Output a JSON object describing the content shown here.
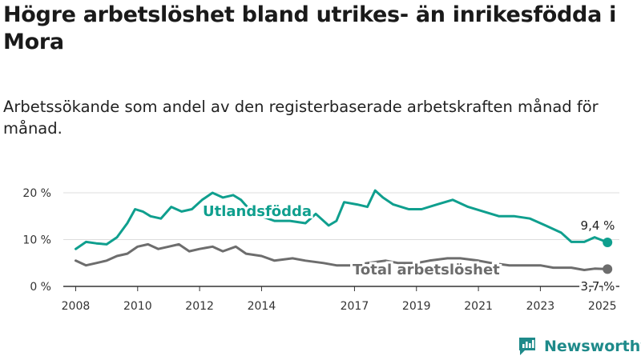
{
  "title": "Högre arbetslöshet bland utrikes- än inrikesfödda i Mora",
  "subtitle": "Arbetssökande som andel av den registerbaserade arbetskraften månad för månad.",
  "brand": {
    "name": "Newsworthy",
    "color": "#1e8a8a"
  },
  "colors": {
    "utlandsfodda": "#0f9f8e",
    "total": "#6d6d6d",
    "grid": "#dddddd",
    "axis": "#333333"
  },
  "chart_data": {
    "type": "line",
    "title": "Högre arbetslöshet bland utrikes- än inrikesfödda i Mora",
    "subtitle": "Arbetssökande som andel av den registerbaserade arbetskraften månad för månad.",
    "x_ticks": [
      "2008",
      "2010",
      "2012",
      "2014",
      "2017",
      "2019",
      "2021",
      "2023",
      "2025"
    ],
    "y_ticks": [
      "0 %",
      "10 %",
      "20 %"
    ],
    "ylim": [
      0,
      20
    ],
    "xlim": [
      "2008-01",
      "2025-03"
    ],
    "grid": true,
    "series": [
      {
        "name": "Utlandsfödda",
        "color": "#0f9f8e",
        "end_label": "9,4 %",
        "points": [
          [
            "2008-01",
            8.0
          ],
          [
            "2008-05",
            9.5
          ],
          [
            "2008-09",
            9.2
          ],
          [
            "2009-01",
            9.0
          ],
          [
            "2009-05",
            10.5
          ],
          [
            "2009-09",
            13.5
          ],
          [
            "2009-12",
            16.5
          ],
          [
            "2010-03",
            16.0
          ],
          [
            "2010-06",
            15.0
          ],
          [
            "2010-10",
            14.5
          ],
          [
            "2011-02",
            17.0
          ],
          [
            "2011-06",
            16.0
          ],
          [
            "2011-10",
            16.5
          ],
          [
            "2012-02",
            18.5
          ],
          [
            "2012-06",
            20.0
          ],
          [
            "2012-10",
            19.0
          ],
          [
            "2013-02",
            19.5
          ],
          [
            "2013-05",
            18.5
          ],
          [
            "2013-09",
            16.0
          ],
          [
            "2014-01",
            15.0
          ],
          [
            "2014-06",
            14.0
          ],
          [
            "2014-12",
            14.0
          ],
          [
            "2015-06",
            13.5
          ],
          [
            "2015-10",
            15.5
          ],
          [
            "2016-03",
            13.0
          ],
          [
            "2016-06",
            14.0
          ],
          [
            "2016-09",
            18.0
          ],
          [
            "2017-02",
            17.5
          ],
          [
            "2017-06",
            17.0
          ],
          [
            "2017-09",
            20.5
          ],
          [
            "2017-12",
            19.0
          ],
          [
            "2018-04",
            17.5
          ],
          [
            "2018-10",
            16.5
          ],
          [
            "2019-03",
            16.5
          ],
          [
            "2019-09",
            17.5
          ],
          [
            "2020-03",
            18.5
          ],
          [
            "2020-09",
            17.0
          ],
          [
            "2021-03",
            16.0
          ],
          [
            "2021-09",
            15.0
          ],
          [
            "2022-03",
            15.0
          ],
          [
            "2022-09",
            14.5
          ],
          [
            "2023-03",
            13.0
          ],
          [
            "2023-09",
            11.5
          ],
          [
            "2024-01",
            9.5
          ],
          [
            "2024-06",
            9.5
          ],
          [
            "2024-10",
            10.5
          ],
          [
            "2025-03",
            9.4
          ]
        ]
      },
      {
        "name": "Total arbetslöshet",
        "color": "#6d6d6d",
        "end_label": "3,7 %",
        "points": [
          [
            "2008-01",
            5.5
          ],
          [
            "2008-05",
            4.5
          ],
          [
            "2008-09",
            5.0
          ],
          [
            "2009-01",
            5.5
          ],
          [
            "2009-05",
            6.5
          ],
          [
            "2009-09",
            7.0
          ],
          [
            "2010-01",
            8.5
          ],
          [
            "2010-05",
            9.0
          ],
          [
            "2010-09",
            8.0
          ],
          [
            "2011-01",
            8.5
          ],
          [
            "2011-05",
            9.0
          ],
          [
            "2011-09",
            7.5
          ],
          [
            "2012-01",
            8.0
          ],
          [
            "2012-06",
            8.5
          ],
          [
            "2012-10",
            7.5
          ],
          [
            "2013-03",
            8.5
          ],
          [
            "2013-07",
            7.0
          ],
          [
            "2014-01",
            6.5
          ],
          [
            "2014-06",
            5.5
          ],
          [
            "2015-01",
            6.0
          ],
          [
            "2015-06",
            5.5
          ],
          [
            "2016-01",
            5.0
          ],
          [
            "2016-06",
            4.5
          ],
          [
            "2016-12",
            4.5
          ],
          [
            "2017-06",
            5.0
          ],
          [
            "2018-01",
            5.5
          ],
          [
            "2018-06",
            5.0
          ],
          [
            "2019-01",
            5.0
          ],
          [
            "2019-06",
            5.5
          ],
          [
            "2020-01",
            6.0
          ],
          [
            "2020-06",
            6.0
          ],
          [
            "2021-01",
            5.5
          ],
          [
            "2021-06",
            5.0
          ],
          [
            "2022-01",
            4.5
          ],
          [
            "2022-06",
            4.5
          ],
          [
            "2023-01",
            4.5
          ],
          [
            "2023-06",
            4.0
          ],
          [
            "2024-01",
            4.0
          ],
          [
            "2024-06",
            3.5
          ],
          [
            "2024-10",
            3.8
          ],
          [
            "2025-03",
            3.7
          ]
        ]
      }
    ]
  }
}
